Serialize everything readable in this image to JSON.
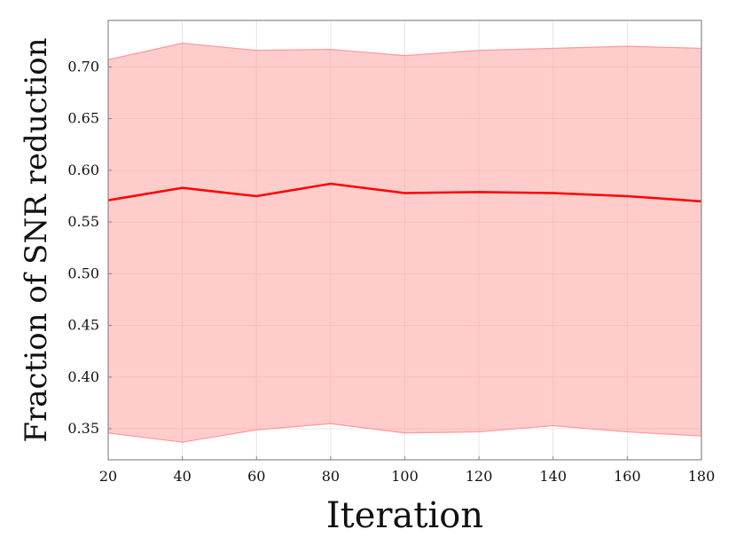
{
  "chart_data": {
    "type": "line",
    "title": "",
    "xlabel": "Iteration",
    "ylabel": "Fraction of SNR reduction",
    "xlim": [
      20,
      180
    ],
    "ylim": [
      0.32,
      0.745
    ],
    "x_ticks": [
      20,
      40,
      60,
      80,
      100,
      120,
      140,
      160,
      180
    ],
    "y_ticks": [
      "0.35",
      "0.40",
      "0.45",
      "0.50",
      "0.55",
      "0.60",
      "0.65",
      "0.70"
    ],
    "grid": true,
    "legend": "none",
    "x": [
      20,
      40,
      60,
      80,
      100,
      120,
      140,
      160,
      180
    ],
    "series": [
      {
        "values": [
          0.571,
          0.583,
          0.575,
          0.587,
          0.578,
          0.579,
          0.578,
          0.575,
          0.57
        ],
        "upper": [
          0.707,
          0.723,
          0.716,
          0.717,
          0.711,
          0.716,
          0.718,
          0.72,
          0.718
        ],
        "lower": [
          0.346,
          0.337,
          0.349,
          0.355,
          0.346,
          0.347,
          0.353,
          0.347,
          0.343
        ],
        "color": "#ff0000",
        "band_color": "#ff9999"
      }
    ]
  }
}
